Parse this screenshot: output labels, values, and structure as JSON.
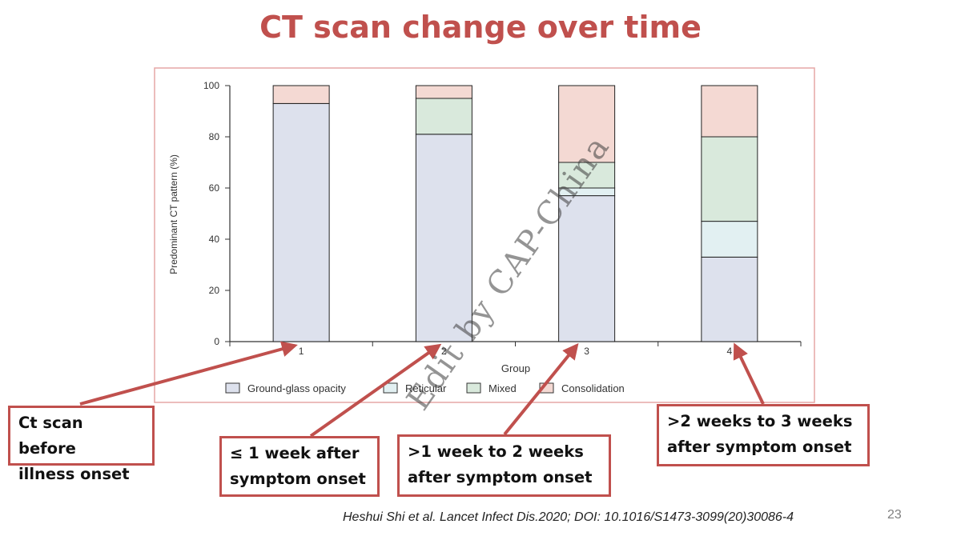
{
  "slide": {
    "title": "CT scan change over time",
    "citation": "Heshui Shi et al. Lancet Infect Dis.2020; DOI: 10.1016/S1473-3099(20)30086-4",
    "page_number": "23",
    "watermark": "Edit by CAP-China"
  },
  "callouts": [
    {
      "lines": [
        "Ct scan before",
        "illness onset"
      ],
      "points_to": "1"
    },
    {
      "lines": [
        "≤ 1 week after",
        "symptom onset"
      ],
      "points_to": "2"
    },
    {
      "lines": [
        ">1 week to 2 weeks",
        "after symptom onset"
      ],
      "points_to": "3"
    },
    {
      "lines": [
        ">2 weeks to 3 weeks",
        "after symptom onset"
      ],
      "points_to": "4"
    }
  ],
  "colors": {
    "accent": "#c0504d",
    "ground_glass": "#dde1ed",
    "reticular": "#e2f0f2",
    "mixed": "#d9e9dc",
    "consolidation": "#f4d9d3"
  },
  "chart_data": {
    "type": "bar",
    "stacked": true,
    "categories": [
      "1",
      "2",
      "3",
      "4"
    ],
    "xlabel": "Group",
    "ylabel": "Predominant CT pattern (%)",
    "ylim": [
      0,
      100
    ],
    "yticks": [
      0,
      20,
      40,
      60,
      80,
      100
    ],
    "legend_position": "bottom",
    "series": [
      {
        "name": "Ground-glass opacity",
        "values": [
          93,
          81,
          57,
          33
        ],
        "color": "#dde1ed"
      },
      {
        "name": "Reticular",
        "values": [
          0,
          0,
          3,
          14
        ],
        "color": "#e2f0f2"
      },
      {
        "name": "Mixed",
        "values": [
          0,
          14,
          10,
          33
        ],
        "color": "#d9e9dc"
      },
      {
        "name": "Consolidation",
        "values": [
          7,
          5,
          30,
          20
        ],
        "color": "#f4d9d3"
      }
    ]
  }
}
